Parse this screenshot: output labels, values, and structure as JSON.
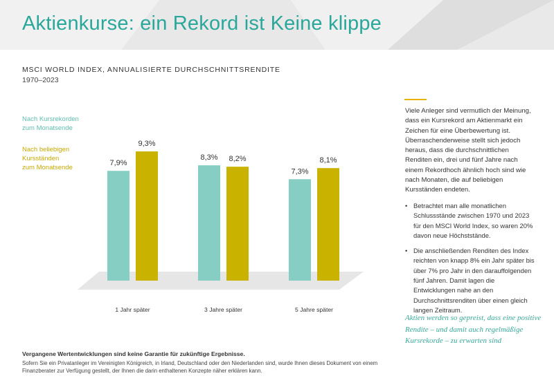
{
  "page": {
    "title": "Aktienkurse: ein Rekord ist Keine klippe",
    "subtitle": "MSCI WORLD INDEX, ANNUALISIERTE DURCHSCHNITTSRENDITE",
    "period": "1970–2023"
  },
  "colors": {
    "title": "#2aa79b",
    "series_a": "#86cdc3",
    "series_b": "#c9b200",
    "accent_rule": "#e8b400",
    "quote": "#3aa99c"
  },
  "chart_data": {
    "type": "bar",
    "title": "MSCI WORLD INDEX, ANNUALISIERTE DURCHSCHNITTSRENDITE",
    "categories": [
      "1 Jahr später",
      "3 Jahre später",
      "5 Jahre später"
    ],
    "series": [
      {
        "name": "Nach Kursrekorden zum Monatsende",
        "legend_lines": [
          "Nach Kursrekorden",
          "zum Monatsende"
        ],
        "values": [
          7.9,
          8.3,
          7.3
        ],
        "labels": [
          "7,9%",
          "8,3%",
          "7,3%"
        ]
      },
      {
        "name": "Nach beliebigen Kursständen zum Monatsende",
        "legend_lines": [
          "Nach beliebigen",
          "Kursständen",
          "zum Monatsende"
        ],
        "values": [
          9.3,
          8.2,
          8.1
        ],
        "labels": [
          "9,3%",
          "8,2%",
          "8,1%"
        ]
      }
    ],
    "ylim": [
      0,
      10
    ],
    "xlabel": "",
    "ylabel": "",
    "legend": "left"
  },
  "sidebar": {
    "intro": "Viele Anleger sind vermutlich der Meinung, dass ein Kursrekord am Aktienmarkt ein Zeichen für eine Überbewertung ist. Überraschenderweise stellt sich jedoch heraus, dass die durchschnittlichen Renditen ein, drei und fünf Jahre nach einem Rekordhoch ähnlich hoch sind wie nach Monaten, die auf beliebigen Kursständen endeten.",
    "bullet_glyph": "•",
    "bullets": [
      "Betrachtet man alle monatlichen Schlussstände zwischen 1970 und 2023 für den MSCI World Index, so waren 20% davon neue Höchststände.",
      "Die anschließenden Renditen des Index reichten von knapp 8% ein Jahr später bis über 7% pro Jahr in den darauffolgenden fünf Jahren. Damit lagen die Entwicklungen nahe an den Durchschnittsrenditen über einen gleich langen Zeitraum."
    ],
    "quote": "Aktien werden so gepreist, dass eine positive Rendite – und damit auch regelmäßige Kursrekorde – zu erwarten sind"
  },
  "footer": {
    "bold": "Vergangene Wertentwicklungen sind keine Garantie für zukünftige Ergebnisse.",
    "text": "Sofern Sie ein Privatanleger im Vereinigten Königreich, in Irland, Deutschland oder den Niederlanden sind, wurde Ihnen dieses Dokument von einem Finanzberater zur Verfügung gestellt, der Ihnen die darin enthaltenen Konzepte näher erklären kann."
  }
}
